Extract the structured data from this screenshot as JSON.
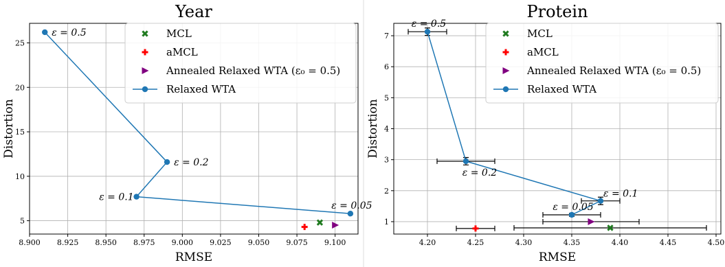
{
  "chart_data": [
    {
      "type": "scatter",
      "title": "Year",
      "xlabel": "RMSE",
      "ylabel": "Distortion",
      "xlim": [
        8.9,
        9.115
      ],
      "ylim": [
        3.5,
        27.2
      ],
      "xticks": [
        8.9,
        8.925,
        8.95,
        8.975,
        9.0,
        9.025,
        9.05,
        9.075,
        9.1
      ],
      "xtick_labels": [
        "8.900",
        "8.925",
        "8.950",
        "8.975",
        "9.000",
        "9.025",
        "9.050",
        "9.075",
        "9.100"
      ],
      "yticks": [
        5,
        10,
        15,
        20,
        25
      ],
      "ytick_labels": [
        "5",
        "10",
        "15",
        "20",
        "25"
      ],
      "grid": true,
      "legend": {
        "placement": "top-right",
        "entries": [
          "MCL",
          "aMCL",
          "Annealed Relaxed WTA (ε₀ = 0.5)",
          "Relaxed WTA"
        ]
      },
      "series": [
        {
          "name": "MCL",
          "marker": "x",
          "color": "#1f7a1f",
          "points": [
            {
              "x": 9.09,
              "y": 4.8
            }
          ]
        },
        {
          "name": "aMCL",
          "marker": "plus",
          "color": "#ff0000",
          "points": [
            {
              "x": 9.08,
              "y": 4.3
            }
          ]
        },
        {
          "name": "Annealed Relaxed WTA (ε₀ = 0.5)",
          "marker": "triangle-right",
          "color": "#800080",
          "points": [
            {
              "x": 9.1,
              "y": 4.5
            }
          ]
        },
        {
          "name": "Relaxed WTA",
          "marker": "circle-line",
          "color": "#1f77b4",
          "points": [
            {
              "x": 8.91,
              "y": 26.2,
              "label": "ε = 0.5",
              "label_pos": "right"
            },
            {
              "x": 8.99,
              "y": 11.6,
              "label": "ε = 0.2",
              "label_pos": "right"
            },
            {
              "x": 8.97,
              "y": 7.7,
              "label": "ε = 0.1",
              "label_pos": "left"
            },
            {
              "x": 9.11,
              "y": 5.8,
              "label": "ε = 0.05",
              "label_pos": "above"
            }
          ]
        }
      ]
    },
    {
      "type": "scatter",
      "title": "Protein",
      "xlabel": "RMSE",
      "ylabel": "Distortion",
      "xlim": [
        4.165,
        4.505
      ],
      "ylim": [
        0.6,
        7.4
      ],
      "xticks": [
        4.2,
        4.25,
        4.3,
        4.35,
        4.4,
        4.45,
        4.5
      ],
      "xtick_labels": [
        "4.20",
        "4.25",
        "4.30",
        "4.35",
        "4.40",
        "4.45",
        "4.50"
      ],
      "yticks": [
        1,
        2,
        3,
        4,
        5,
        6,
        7
      ],
      "ytick_labels": [
        "1",
        "2",
        "3",
        "4",
        "5",
        "6",
        "7"
      ],
      "grid": true,
      "legend": {
        "placement": "top-right",
        "entries": [
          "MCL",
          "aMCL",
          "Annealed Relaxed WTA (ε₀ = 0.5)",
          "Relaxed WTA"
        ]
      },
      "series": [
        {
          "name": "MCL",
          "marker": "x",
          "color": "#1f7a1f",
          "points": [
            {
              "x": 4.39,
              "y": 0.8,
              "xerr": 0.1
            }
          ]
        },
        {
          "name": "aMCL",
          "marker": "plus",
          "color": "#ff0000",
          "points": [
            {
              "x": 4.25,
              "y": 0.78,
              "xerr": 0.02
            }
          ]
        },
        {
          "name": "Annealed Relaxed WTA (ε₀ = 0.5)",
          "marker": "triangle-right",
          "color": "#800080",
          "points": [
            {
              "x": 4.37,
              "y": 1.0,
              "xerr": 0.05
            }
          ]
        },
        {
          "name": "Relaxed WTA",
          "marker": "circle-line",
          "color": "#1f77b4",
          "points": [
            {
              "x": 4.2,
              "y": 7.13,
              "xerr": 0.02,
              "yerr": 0.12,
              "label": "ε = 0.5",
              "label_pos": "above"
            },
            {
              "x": 4.24,
              "y": 2.95,
              "xerr": 0.03,
              "yerr": 0.12,
              "label": "ε = 0.2",
              "label_pos": "below"
            },
            {
              "x": 4.38,
              "y": 1.67,
              "xerr": 0.02,
              "yerr": 0.12,
              "label": "ε = 0.1",
              "label_pos": "above-right"
            },
            {
              "x": 4.35,
              "y": 1.22,
              "xerr": 0.03,
              "yerr": 0.05,
              "label": "ε = 0.05",
              "label_pos": "above"
            }
          ]
        }
      ]
    }
  ]
}
